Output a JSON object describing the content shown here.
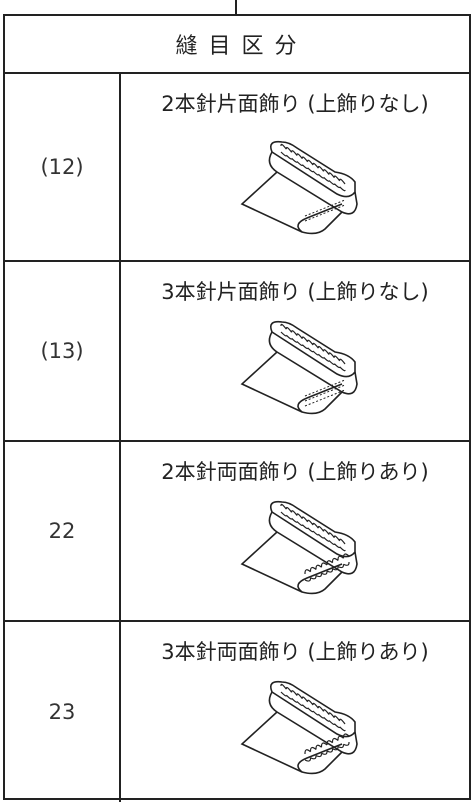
{
  "table": {
    "header": "縫 目 区 分",
    "rows": [
      [
        "(12)",
        "2本針片面飾り (上飾りなし)"
      ],
      [
        "(13)",
        "3本針片面飾り (上飾りなし)"
      ],
      [
        "22",
        "2本針両面飾り (上飾りあり)"
      ],
      [
        "23",
        "3本針両面飾り (上飾りあり)"
      ]
    ]
  }
}
